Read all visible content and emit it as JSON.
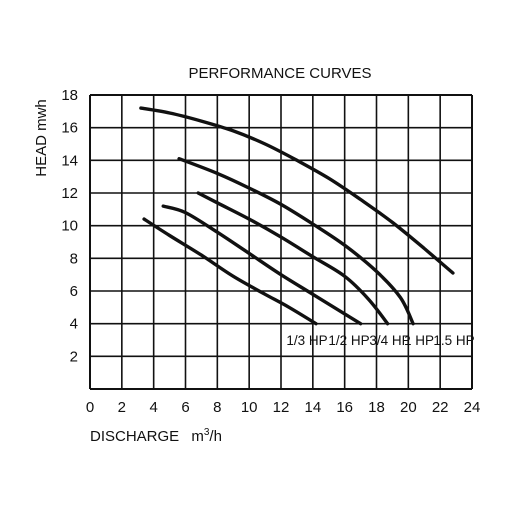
{
  "chart_data": {
    "type": "line",
    "title": "PERFORMANCE CURVES",
    "xlabel": "DISCHARGE",
    "xunit_base": "m",
    "xunit_sup": "3",
    "xunit_tail": "/h",
    "ylabel": "HEAD mwh",
    "xlim": [
      0,
      24
    ],
    "ylim": [
      0,
      18
    ],
    "xticks": [
      0,
      2,
      4,
      6,
      8,
      10,
      12,
      14,
      16,
      18,
      20,
      22,
      24
    ],
    "yticks": [
      2,
      4,
      6,
      8,
      10,
      12,
      14,
      16,
      18
    ],
    "grid": true,
    "series": [
      {
        "name": "1/3 HP",
        "x": [
          3.4,
          5.0,
          7.0,
          9.0,
          11.0,
          12.5,
          14.2
        ],
        "y": [
          10.4,
          9.4,
          8.2,
          6.9,
          5.8,
          5.0,
          4.0
        ]
      },
      {
        "name": "1/2 HP",
        "x": [
          4.6,
          6.0,
          8.0,
          10.0,
          12.0,
          14.0,
          16.0,
          17.0
        ],
        "y": [
          11.2,
          10.8,
          9.6,
          8.3,
          7.0,
          5.8,
          4.6,
          4.0
        ]
      },
      {
        "name": "3/4 HP",
        "x": [
          6.8,
          8.0,
          10.0,
          12.0,
          14.0,
          16.0,
          17.5,
          18.7
        ],
        "y": [
          12.0,
          11.4,
          10.4,
          9.3,
          8.1,
          6.9,
          5.5,
          4.0
        ]
      },
      {
        "name": "1 HP",
        "x": [
          5.6,
          8.0,
          10.0,
          12.0,
          14.0,
          16.0,
          18.0,
          19.5,
          20.3
        ],
        "y": [
          14.1,
          13.2,
          12.3,
          11.3,
          10.1,
          8.8,
          7.2,
          5.6,
          4.0
        ]
      },
      {
        "name": "1.5 HP",
        "x": [
          3.2,
          5.0,
          7.0,
          9.0,
          11.0,
          13.0,
          15.0,
          17.0,
          19.0,
          21.0,
          22.8
        ],
        "y": [
          17.2,
          16.9,
          16.4,
          15.8,
          15.0,
          14.0,
          12.9,
          11.6,
          10.2,
          8.6,
          7.1
        ]
      }
    ]
  }
}
